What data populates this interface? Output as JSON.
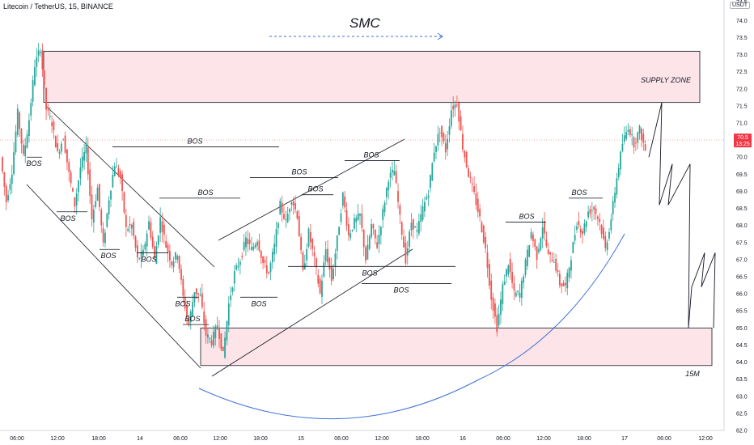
{
  "header": {
    "symbol_line": "Litecoin / TetherUS, 15, BINANCE",
    "currency": "USDT"
  },
  "chart_data": {
    "type": "candlestick",
    "title": "SMC",
    "ylim": [
      62.0,
      74.6
    ],
    "y_ticks": [
      62.0,
      62.5,
      63.0,
      63.5,
      64.0,
      64.5,
      65.0,
      65.5,
      66.0,
      66.5,
      67.0,
      67.5,
      68.0,
      68.5,
      69.0,
      69.5,
      70.0,
      70.5,
      71.0,
      71.5,
      72.0,
      72.5,
      73.0,
      73.5,
      74.0
    ],
    "y_tick_top": "74.5",
    "x_ticks": [
      "06:00",
      "12:00",
      "18:00",
      "14",
      "06:00",
      "12:00",
      "18:00",
      "15",
      "06:00",
      "12:00",
      "18:00",
      "16",
      "06:00",
      "12:00",
      "18:00",
      "17",
      "06:00",
      "12:00"
    ],
    "current_price": {
      "value": 70.5,
      "label": "70.5",
      "countdown": "13:25",
      "color": "#f23645"
    },
    "colors": {
      "up": "#26a69a",
      "down": "#ef5350",
      "zone_fill": "#fce4e8",
      "curve": "#3d6fd6"
    },
    "price_path": [
      70.0,
      68.7,
      69.6,
      71.3,
      70.0,
      71.1,
      72.7,
      73.2,
      71.4,
      71.0,
      70.1,
      70.6,
      69.5,
      68.6,
      69.7,
      70.3,
      68.2,
      69.1,
      67.4,
      68.8,
      69.8,
      69.4,
      67.9,
      68.0,
      67.0,
      67.2,
      68.1,
      67.0,
      68.2,
      67.4,
      66.9,
      67.2,
      65.9,
      65.1,
      66.1,
      65.9,
      64.8,
      64.6,
      65.1,
      64.2,
      65.7,
      66.6,
      67.0,
      67.6,
      67.3,
      67.6,
      66.9,
      66.6,
      67.4,
      68.6,
      68.1,
      68.8,
      68.3,
      66.6,
      67.8,
      67.0,
      66.0,
      67.3,
      66.4,
      67.6,
      68.9,
      67.7,
      68.1,
      68.3,
      67.0,
      68.0,
      67.4,
      68.4,
      69.4,
      69.6,
      68.2,
      67.0,
      68.1,
      67.8,
      68.5,
      69.0,
      70.2,
      70.8,
      70.2,
      71.4,
      71.6,
      70.3,
      69.5,
      68.9,
      68.2,
      67.3,
      65.9,
      65.0,
      66.2,
      66.9,
      66.0,
      66.0,
      66.9,
      67.8,
      67.1,
      68.0,
      67.1,
      67.0,
      66.3,
      66.2,
      67.1,
      68.1,
      67.8,
      68.4,
      68.5,
      68.1,
      67.3,
      68.2,
      69.4,
      70.4,
      70.9,
      70.4,
      70.8,
      70.2
    ],
    "zones": [
      {
        "name": "SUPPLY ZONE",
        "y_top": 73.1,
        "y_bottom": 71.6
      },
      {
        "name": "15M",
        "y_top": 65.0,
        "y_bottom": 63.9
      }
    ],
    "bos_lines": [
      {
        "label": "BOS",
        "y": 70.0
      },
      {
        "label": "BOS",
        "y": 68.4
      },
      {
        "label": "BOS",
        "y": 67.3
      },
      {
        "label": "BOS",
        "y": 67.2
      },
      {
        "label": "BOS",
        "y": 70.3
      },
      {
        "label": "BOS",
        "y": 68.8
      },
      {
        "label": "BOS",
        "y": 65.9
      },
      {
        "label": "BOS",
        "y": 65.1
      },
      {
        "label": "BOS",
        "y": 69.4
      },
      {
        "label": "BOS",
        "y": 66.3
      },
      {
        "label": "BOS",
        "y": 68.9
      },
      {
        "label": "BOS",
        "y": 69.9
      },
      {
        "label": "BOS",
        "y": 66.8
      },
      {
        "label": "BOS",
        "y": 65.9
      },
      {
        "label": "BOS",
        "y": 68.1
      },
      {
        "label": "BOS",
        "y": 68.8
      }
    ],
    "projection_path": [
      70.0,
      71.6,
      68.6,
      69.8,
      68.6,
      69.8,
      65.0,
      66.2,
      67.2,
      66.2,
      67.2,
      65.0
    ]
  }
}
